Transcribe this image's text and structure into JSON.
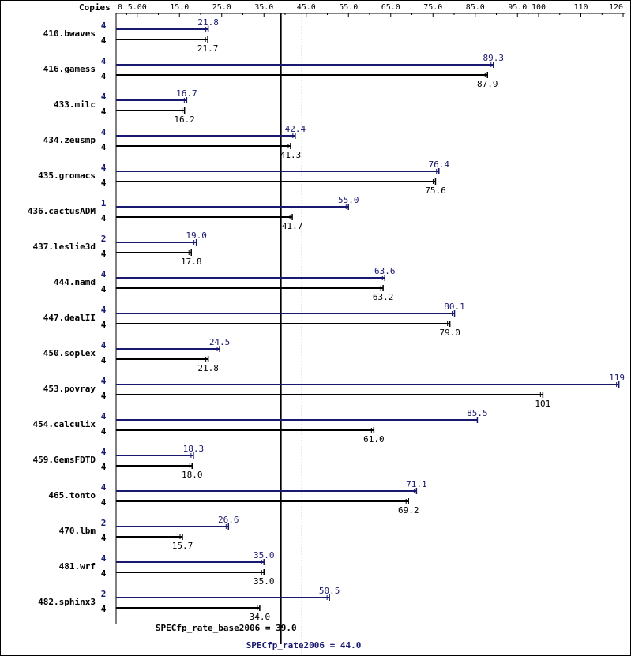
{
  "chart_data": {
    "type": "bar",
    "orientation": "horizontal",
    "title": "",
    "xlabel": "",
    "ylabel": "",
    "copies_header": "Copies",
    "xlim": [
      0,
      120
    ],
    "tick_labels": [
      "0",
      "5.00",
      "15.0",
      "25.0",
      "35.0",
      "45.0",
      "55.0",
      "65.0",
      "75.0",
      "85.0",
      "95.0",
      "100",
      "110",
      "120"
    ],
    "tick_values": [
      0,
      5,
      15,
      25,
      35,
      45,
      55,
      65,
      75,
      85,
      95,
      100,
      110,
      120
    ],
    "grid": false,
    "categories": [
      "410.bwaves",
      "416.gamess",
      "433.milc",
      "434.zeusmp",
      "435.gromacs",
      "436.cactusADM",
      "437.leslie3d",
      "444.namd",
      "447.dealII",
      "450.soplex",
      "453.povray",
      "454.calculix",
      "459.GemsFDTD",
      "465.tonto",
      "470.lbm",
      "481.wrf",
      "482.sphinx3"
    ],
    "series": [
      {
        "key": "peak",
        "color": "#191970",
        "values": [
          21.8,
          89.3,
          16.7,
          42.4,
          76.4,
          55.0,
          19.0,
          63.6,
          80.1,
          24.5,
          119,
          85.5,
          18.3,
          71.1,
          26.6,
          35.0,
          50.5
        ],
        "value_labels": [
          "21.8",
          "89.3",
          "16.7",
          "42.4",
          "76.4",
          "55.0",
          "19.0",
          "63.6",
          "80.1",
          "24.5",
          "119",
          "85.5",
          "18.3",
          "71.1",
          "26.6",
          "35.0",
          "50.5"
        ],
        "copies": [
          "4",
          "4",
          "4",
          "4",
          "4",
          "1",
          "2",
          "4",
          "4",
          "4",
          "4",
          "4",
          "4",
          "4",
          "2",
          "4",
          "2"
        ]
      },
      {
        "key": "base",
        "color": "#000000",
        "values": [
          21.7,
          87.9,
          16.2,
          41.3,
          75.6,
          41.7,
          17.8,
          63.2,
          79.0,
          21.8,
          101,
          61.0,
          18.0,
          69.2,
          15.7,
          35.0,
          34.0
        ],
        "value_labels": [
          "21.7",
          "87.9",
          "16.2",
          "41.3",
          "75.6",
          "41.7",
          "17.8",
          "63.2",
          "79.0",
          "21.8",
          "101",
          "61.0",
          "18.0",
          "69.2",
          "15.7",
          "35.0",
          "34.0"
        ],
        "copies": [
          "4",
          "4",
          "4",
          "4",
          "4",
          "4",
          "4",
          "4",
          "4",
          "4",
          "4",
          "4",
          "4",
          "4",
          "4",
          "4",
          "4"
        ]
      }
    ],
    "reference_lines": [
      {
        "key": "base",
        "label": "SPECfp_rate_base2006 = 39.0",
        "value": 39.0,
        "color": "#000000",
        "style": "solid"
      },
      {
        "key": "peak",
        "label": "SPECfp_rate2006 = 44.0",
        "value": 44.0,
        "color": "#191970",
        "style": "dotted"
      }
    ]
  }
}
